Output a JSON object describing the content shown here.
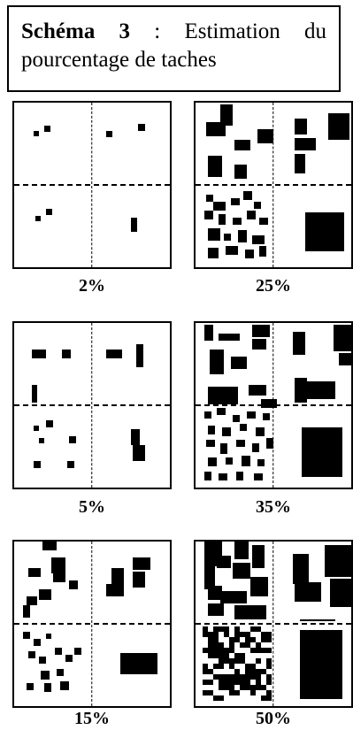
{
  "title": {
    "bold": "Schéma 3",
    "rest": " : Estimation du pourcentage de taches"
  },
  "panels": [
    {
      "label": "2%"
    },
    {
      "label": "25%"
    },
    {
      "label": "5%"
    },
    {
      "label": "35%"
    },
    {
      "label": "15%"
    },
    {
      "label": "50%"
    }
  ]
}
